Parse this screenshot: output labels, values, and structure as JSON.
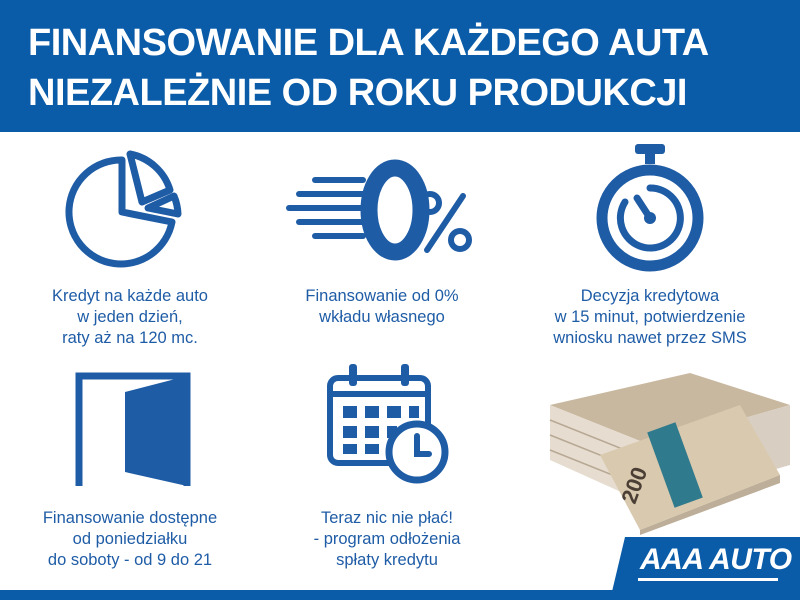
{
  "header": {
    "line1": "FINANSOWANIE DLA KAŻDEGO AUTA",
    "line2": "NIEZALEŻNIE OD ROKU PRODUKCJI"
  },
  "features": [
    {
      "icon": "pie-chart-icon",
      "lines": [
        "Kredyt na każde auto",
        "w jeden dzień,",
        "raty aż na 120 mc."
      ]
    },
    {
      "icon": "zero-percent-icon",
      "lines": [
        "Finansowanie od 0%",
        "wkładu własnego"
      ]
    },
    {
      "icon": "stopwatch-icon",
      "lines": [
        "Decyzja kredytowa",
        "w 15 minut, potwierdzenie",
        "wniosku nawet przez SMS"
      ]
    },
    {
      "icon": "open-door-icon",
      "lines": [
        "Finansowanie dostępne",
        "od poniedziałku",
        "do soboty - od 9 do 21"
      ]
    },
    {
      "icon": "calendar-clock-icon",
      "lines": [
        "Teraz nic nie płać!",
        "- program odłożenia",
        "spłaty kredytu"
      ]
    }
  ],
  "money_image": {
    "icon": "banknotes-icon",
    "denomination": "200"
  },
  "logo": {
    "text": "AAA AUTO"
  },
  "colors": {
    "brand_blue": "#0b5ca8",
    "text_blue": "#1f5ca6"
  }
}
